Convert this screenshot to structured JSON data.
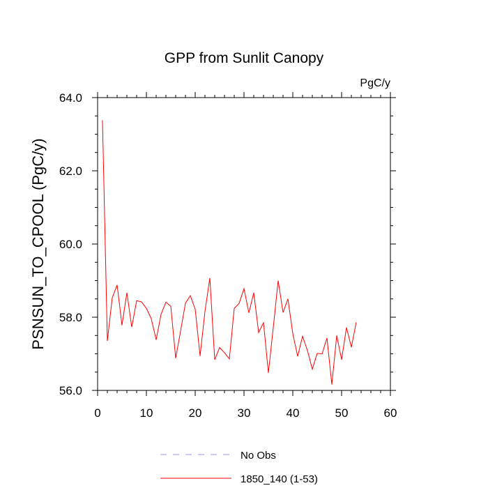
{
  "chart_data": {
    "type": "line",
    "title": "GPP from Sunlit Canopy",
    "units_label": "PgC/y",
    "ylabel": "PSNSUN_TO_CPOOL  (PgC/y)",
    "xlabel": "",
    "xlim": [
      0,
      60
    ],
    "ylim": [
      56.0,
      64.0
    ],
    "x_ticks": [
      0,
      10,
      20,
      30,
      40,
      50,
      60
    ],
    "x_tick_labels": [
      "0",
      "10",
      "20",
      "30",
      "40",
      "50",
      "60"
    ],
    "y_ticks": [
      56.0,
      58.0,
      60.0,
      62.0,
      64.0
    ],
    "y_tick_labels": [
      "56.0",
      "58.0",
      "60.0",
      "62.0",
      "64.0"
    ],
    "grid": false,
    "legend_position": "bottom",
    "series": [
      {
        "name": "No Obs",
        "color": "#9a9af0",
        "dash": "dashed",
        "x": [],
        "values": []
      },
      {
        "name": "1850_140 (1-53)",
        "color": "#ff0000",
        "dash": "solid",
        "x": [
          1,
          2,
          3,
          4,
          5,
          6,
          7,
          8,
          9,
          10,
          11,
          12,
          13,
          14,
          15,
          16,
          17,
          18,
          19,
          20,
          21,
          22,
          23,
          24,
          25,
          26,
          27,
          28,
          29,
          30,
          31,
          32,
          33,
          34,
          35,
          36,
          37,
          38,
          39,
          40,
          41,
          42,
          43,
          44,
          45,
          46,
          47,
          48,
          49,
          50,
          51,
          52,
          53
        ],
        "values": [
          63.38,
          57.35,
          58.53,
          58.88,
          57.78,
          58.67,
          57.73,
          58.45,
          58.42,
          58.24,
          57.96,
          57.38,
          58.08,
          58.41,
          58.3,
          56.88,
          57.62,
          58.38,
          58.59,
          58.22,
          56.94,
          58.16,
          59.07,
          56.84,
          57.17,
          57.03,
          56.86,
          58.24,
          58.38,
          58.78,
          58.12,
          58.67,
          57.58,
          57.85,
          56.48,
          57.72,
          59.0,
          58.13,
          58.5,
          57.55,
          56.93,
          57.48,
          57.09,
          56.58,
          57.01,
          57.0,
          57.43,
          56.16,
          57.5,
          56.84,
          57.72,
          57.18,
          57.86
        ]
      }
    ]
  }
}
